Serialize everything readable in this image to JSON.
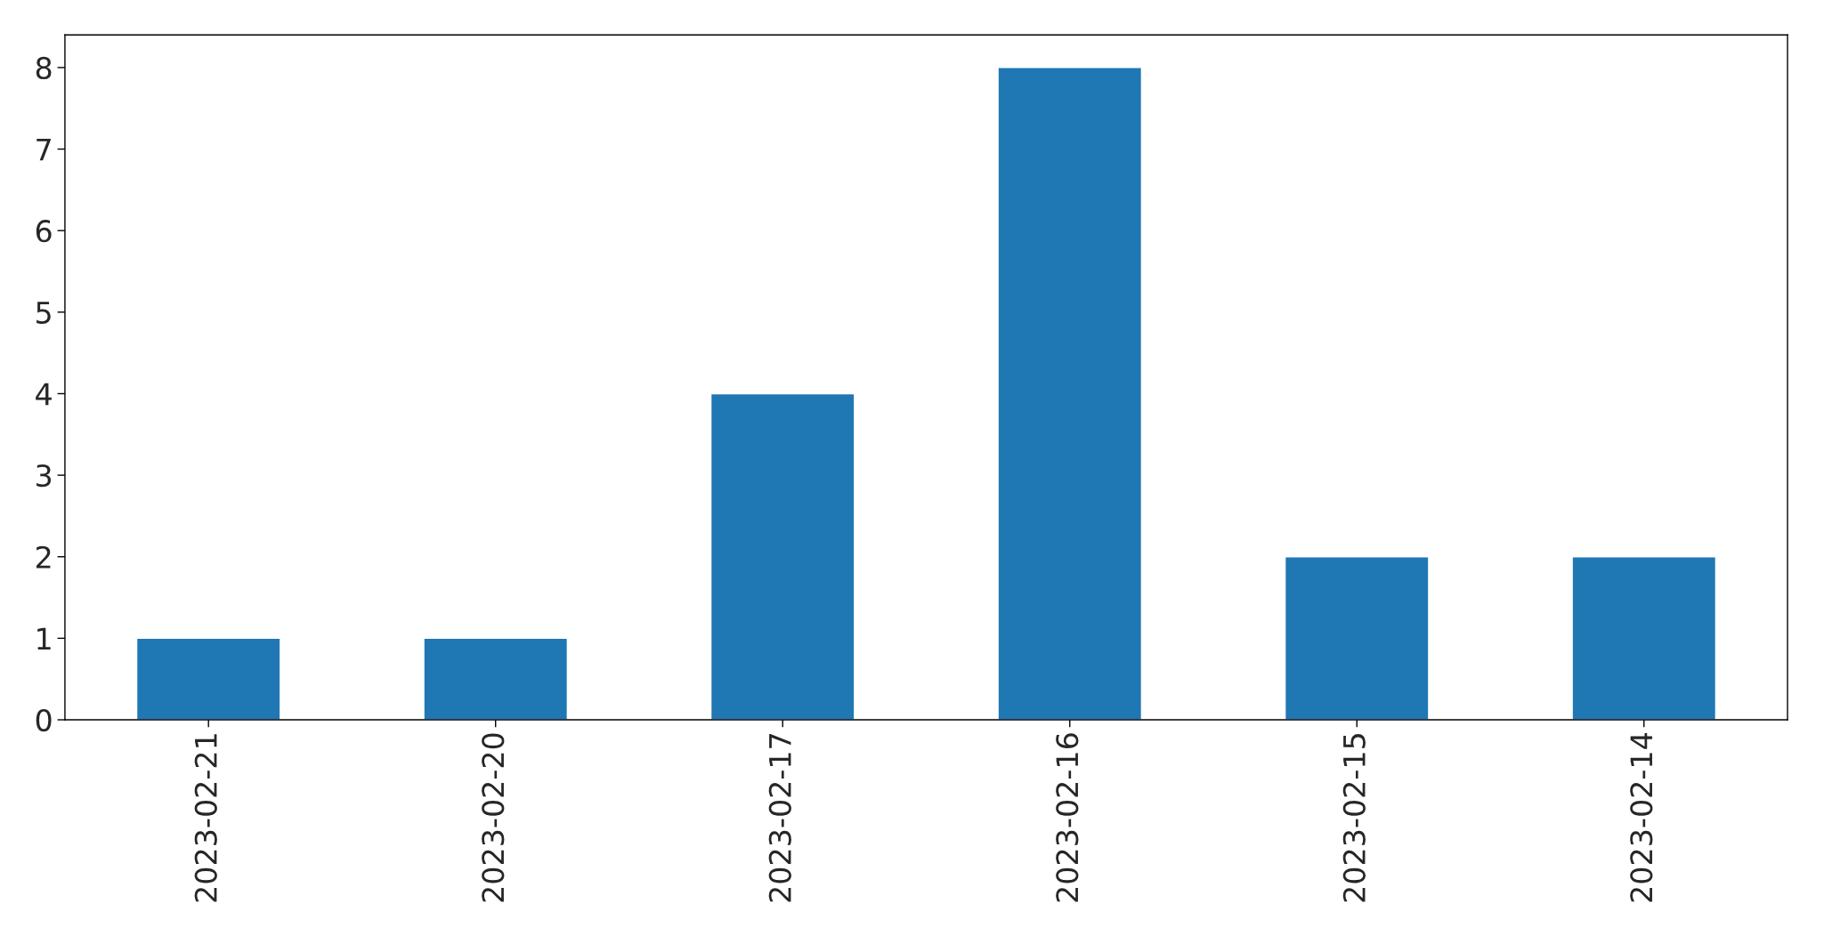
{
  "chart_data": {
    "type": "bar",
    "categories": [
      "2023-02-21",
      "2023-02-20",
      "2023-02-17",
      "2023-02-16",
      "2023-02-15",
      "2023-02-14"
    ],
    "values": [
      1,
      1,
      4,
      8,
      2,
      2
    ],
    "color": "#1f77b4",
    "ylim": [
      0,
      8.4
    ],
    "yticks": [
      0,
      1,
      2,
      3,
      4,
      5,
      6,
      7,
      8
    ],
    "grid": false
  }
}
